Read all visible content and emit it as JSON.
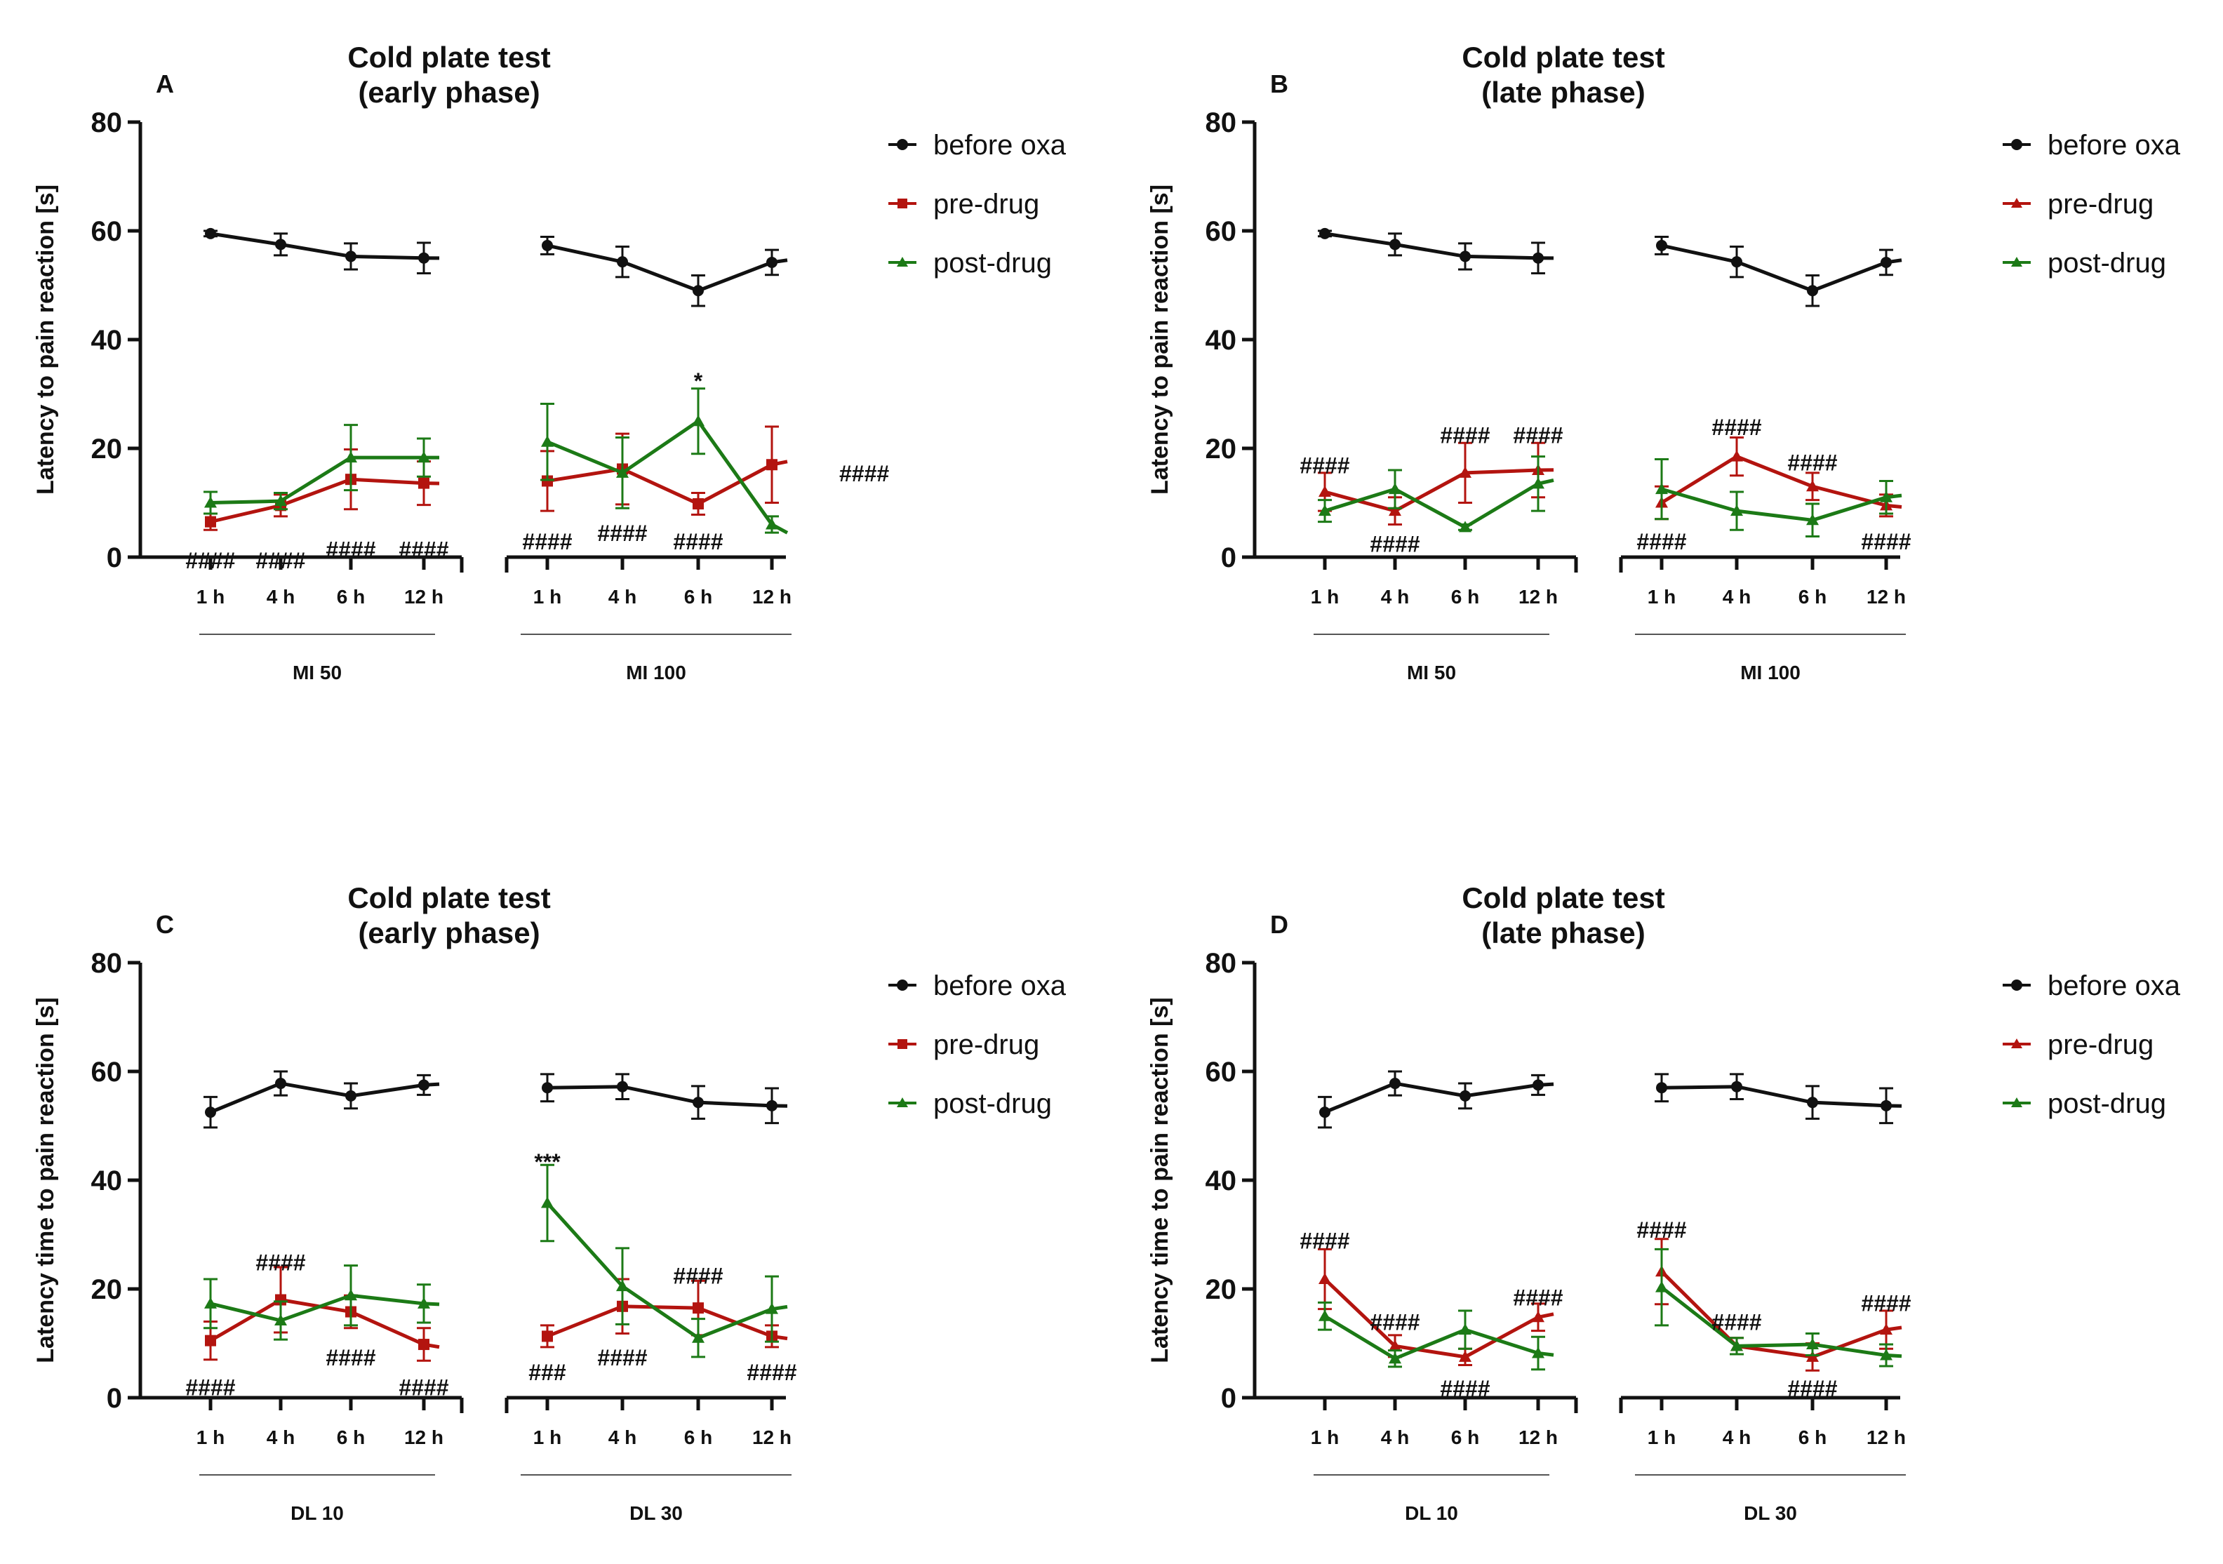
{
  "colors": {
    "before": "#111111",
    "pre": "#b3140f",
    "post": "#1c7a16"
  },
  "chart_data": [
    {
      "panel": "A",
      "type": "line",
      "title": "Cold plate test",
      "subtitle": "(early phase)",
      "ylabel": "Latency to pain reaction [s]",
      "ylim": [
        0,
        80
      ],
      "yticks": [
        "0",
        "20",
        "40",
        "60",
        "80"
      ],
      "groups": [
        {
          "label": "MI 50",
          "categories": [
            "1 h",
            "4 h",
            "6 h",
            "12 h"
          ]
        },
        {
          "label": "MI 100",
          "categories": [
            "1 h",
            "4 h",
            "6 h",
            "12 h"
          ]
        }
      ],
      "legend": [
        "before oxa",
        "pre-drug",
        "post-drug"
      ],
      "series": [
        {
          "name": "before oxa",
          "key": "before",
          "marker": "circle",
          "values": [
            [
              59.5,
              57.5,
              55.3,
              55
            ],
            [
              57.3,
              54.3,
              49,
              54.2
            ]
          ],
          "errors": [
            [
              0.5,
              2,
              2.4,
              2.8
            ],
            [
              1.6,
              2.8,
              2.8,
              2.3
            ]
          ]
        },
        {
          "name": "pre-drug",
          "key": "pre",
          "marker": "square",
          "values": [
            [
              6.5,
              9.5,
              14.3,
              13.6
            ],
            [
              14,
              16.2,
              9.8,
              17
            ]
          ],
          "errors": [
            [
              1.5,
              2,
              5.5,
              4
            ],
            [
              5.5,
              6.5,
              2,
              7
            ]
          ]
        },
        {
          "name": "post-drug",
          "key": "post",
          "marker": "triangle",
          "values": [
            [
              10,
              10.3,
              18.3,
              18.3
            ],
            [
              21.2,
              15.5,
              25,
              6
            ]
          ],
          "errors": [
            [
              2,
              1.5,
              6,
              3.5
            ],
            [
              7,
              6.5,
              6,
              1.5
            ]
          ]
        }
      ],
      "annotations": [
        {
          "text": "####",
          "group": 0,
          "index": 0,
          "y": -0.5
        },
        {
          "text": "####",
          "group": 0,
          "index": 1,
          "y": -0.5
        },
        {
          "text": "####",
          "group": 0,
          "index": 2,
          "y": 1.5
        },
        {
          "text": "####",
          "group": 0,
          "index": 3,
          "y": 1.5
        },
        {
          "text": "####",
          "group": 1,
          "index": 0,
          "y": 3
        },
        {
          "text": "####",
          "group": 1,
          "index": 1,
          "y": 4.5
        },
        {
          "text": "####",
          "group": 1,
          "index": 2,
          "y": 3
        },
        {
          "text": "####",
          "group": 1,
          "index": 3,
          "y": 15.5,
          "offset": 1.2
        },
        {
          "text": "*",
          "group": 1,
          "index": 2,
          "y": 32.5
        }
      ]
    },
    {
      "panel": "B",
      "type": "line",
      "title": "Cold plate test",
      "subtitle": "(late phase)",
      "ylabel": "Latency to pain reaction [s]",
      "ylim": [
        0,
        80
      ],
      "yticks": [
        "0",
        "20",
        "40",
        "60",
        "80"
      ],
      "groups": [
        {
          "label": "MI 50",
          "categories": [
            "1 h",
            "4 h",
            "6 h",
            "12 h"
          ]
        },
        {
          "label": "MI 100",
          "categories": [
            "1 h",
            "4 h",
            "6 h",
            "12 h"
          ]
        }
      ],
      "legend": [
        "before oxa",
        "pre-drug",
        "post-drug"
      ],
      "series": [
        {
          "name": "before oxa",
          "key": "before",
          "marker": "circle",
          "values": [
            [
              59.5,
              57.5,
              55.3,
              55
            ],
            [
              57.3,
              54.3,
              49,
              54.2
            ]
          ],
          "errors": [
            [
              0.5,
              2,
              2.4,
              2.8
            ],
            [
              1.6,
              2.8,
              2.8,
              2.3
            ]
          ]
        },
        {
          "name": "pre-drug",
          "key": "pre",
          "marker": "triangle",
          "values": [
            [
              12,
              8.5,
              15.5,
              16
            ],
            [
              10,
              18.5,
              13,
              9.5
            ]
          ],
          "errors": [
            [
              3.5,
              2.5,
              5.5,
              5
            ],
            [
              3,
              3.5,
              2.5,
              2
            ]
          ]
        },
        {
          "name": "post-drug",
          "key": "post",
          "marker": "triangle",
          "values": [
            [
              8.5,
              12.5,
              5.5,
              13.5
            ],
            [
              12.5,
              8.5,
              6.8,
              11
            ]
          ],
          "errors": [
            [
              2,
              3.5,
              0.5,
              5
            ],
            [
              5.5,
              3.5,
              3,
              3
            ]
          ]
        }
      ],
      "annotations": [
        {
          "text": "####",
          "group": 0,
          "index": 0,
          "y": 17
        },
        {
          "text": "####",
          "group": 0,
          "index": 1,
          "y": 2.5
        },
        {
          "text": "####",
          "group": 0,
          "index": 2,
          "y": 22.5
        },
        {
          "text": "####",
          "group": 0,
          "index": 3,
          "y": 22.5
        },
        {
          "text": "####",
          "group": 1,
          "index": 0,
          "y": 3
        },
        {
          "text": "####",
          "group": 1,
          "index": 1,
          "y": 24
        },
        {
          "text": "####",
          "group": 1,
          "index": 2,
          "y": 17.5
        },
        {
          "text": "####",
          "group": 1,
          "index": 3,
          "y": 3
        }
      ]
    },
    {
      "panel": "C",
      "type": "line",
      "title": "Cold plate test",
      "subtitle": "(early phase)",
      "ylabel": "Latency time to pain reaction [s]",
      "ylim": [
        0,
        80
      ],
      "yticks": [
        "0",
        "20",
        "40",
        "60",
        "80"
      ],
      "groups": [
        {
          "label": "DL 10",
          "categories": [
            "1 h",
            "4 h",
            "6 h",
            "12 h"
          ]
        },
        {
          "label": "DL 30",
          "categories": [
            "1 h",
            "4 h",
            "6 h",
            "12 h"
          ]
        }
      ],
      "legend": [
        "before oxa",
        "pre-drug",
        "post-drug"
      ],
      "series": [
        {
          "name": "before oxa",
          "key": "before",
          "marker": "circle",
          "values": [
            [
              52.5,
              57.8,
              55.5,
              57.5
            ],
            [
              57,
              57.2,
              54.3,
              53.7
            ]
          ],
          "errors": [
            [
              2.8,
              2.2,
              2.3,
              1.8
            ],
            [
              2.5,
              2.3,
              3,
              3.2
            ]
          ]
        },
        {
          "name": "pre-drug",
          "key": "pre",
          "marker": "square",
          "values": [
            [
              10.5,
              18,
              15.8,
              9.8
            ],
            [
              11.3,
              16.8,
              16.5,
              11.3
            ]
          ],
          "errors": [
            [
              3.5,
              6,
              3,
              3
            ],
            [
              2,
              5,
              5,
              2
            ]
          ]
        },
        {
          "name": "post-drug",
          "key": "post",
          "marker": "triangle",
          "values": [
            [
              17.3,
              14.2,
              18.8,
              17.3
            ],
            [
              35.8,
              20.5,
              11,
              16.3
            ]
          ],
          "errors": [
            [
              4.5,
              3.5,
              5.5,
              3.5
            ],
            [
              7,
              7,
              3.5,
              6
            ]
          ]
        }
      ],
      "annotations": [
        {
          "text": "####",
          "group": 0,
          "index": 0,
          "y": 2
        },
        {
          "text": "####",
          "group": 0,
          "index": 1,
          "y": 25
        },
        {
          "text": "####",
          "group": 0,
          "index": 2,
          "y": 7.5
        },
        {
          "text": "####",
          "group": 0,
          "index": 3,
          "y": 2
        },
        {
          "text": "###",
          "group": 1,
          "index": 0,
          "y": 4.8
        },
        {
          "text": "####",
          "group": 1,
          "index": 1,
          "y": 7.5
        },
        {
          "text": "####",
          "group": 1,
          "index": 2,
          "y": 22.5
        },
        {
          "text": "####",
          "group": 1,
          "index": 3,
          "y": 4.8
        },
        {
          "text": "***",
          "group": 1,
          "index": 0,
          "y": 43.5
        }
      ]
    },
    {
      "panel": "D",
      "type": "line",
      "title": "Cold plate test",
      "subtitle": "(late phase)",
      "ylabel": "Latency time to pain reaction [s]",
      "ylim": [
        0,
        80
      ],
      "yticks": [
        "0",
        "20",
        "40",
        "60",
        "80"
      ],
      "groups": [
        {
          "label": "DL 10",
          "categories": [
            "1 h",
            "4 h",
            "6 h",
            "12 h"
          ]
        },
        {
          "label": "DL 30",
          "categories": [
            "1 h",
            "4 h",
            "6 h",
            "12 h"
          ]
        }
      ],
      "legend": [
        "before oxa",
        "pre-drug",
        "post-drug"
      ],
      "series": [
        {
          "name": "before oxa",
          "key": "before",
          "marker": "circle",
          "values": [
            [
              52.5,
              57.8,
              55.5,
              57.5
            ],
            [
              57,
              57.2,
              54.3,
              53.7
            ]
          ],
          "errors": [
            [
              2.8,
              2.2,
              2.3,
              1.8
            ],
            [
              2.5,
              2.3,
              3,
              3.2
            ]
          ]
        },
        {
          "name": "pre-drug",
          "key": "pre",
          "marker": "triangle",
          "values": [
            [
              21.8,
              9.5,
              7.5,
              14.8
            ],
            [
              23.2,
              9.5,
              7.5,
              12.5
            ]
          ],
          "errors": [
            [
              5.5,
              2,
              1.5,
              2.5
            ],
            [
              6,
              1.5,
              2.5,
              3.5
            ]
          ]
        },
        {
          "name": "post-drug",
          "key": "post",
          "marker": "triangle",
          "values": [
            [
              15,
              7.2,
              12.5,
              8.2
            ],
            [
              20.3,
              9.5,
              9.8,
              7.8
            ]
          ],
          "errors": [
            [
              2.5,
              1.5,
              3.5,
              3
            ],
            [
              7,
              1.5,
              2,
              2
            ]
          ]
        }
      ],
      "annotations": [
        {
          "text": "####",
          "group": 0,
          "index": 0,
          "y": 29
        },
        {
          "text": "####",
          "group": 0,
          "index": 1,
          "y": 14
        },
        {
          "text": "####",
          "group": 0,
          "index": 2,
          "y": 1.8
        },
        {
          "text": "####",
          "group": 0,
          "index": 3,
          "y": 18.5
        },
        {
          "text": "####",
          "group": 1,
          "index": 0,
          "y": 31
        },
        {
          "text": "####",
          "group": 1,
          "index": 1,
          "y": 14
        },
        {
          "text": "####",
          "group": 1,
          "index": 2,
          "y": 1.8
        },
        {
          "text": "####",
          "group": 1,
          "index": 3,
          "y": 17.5
        }
      ]
    }
  ]
}
